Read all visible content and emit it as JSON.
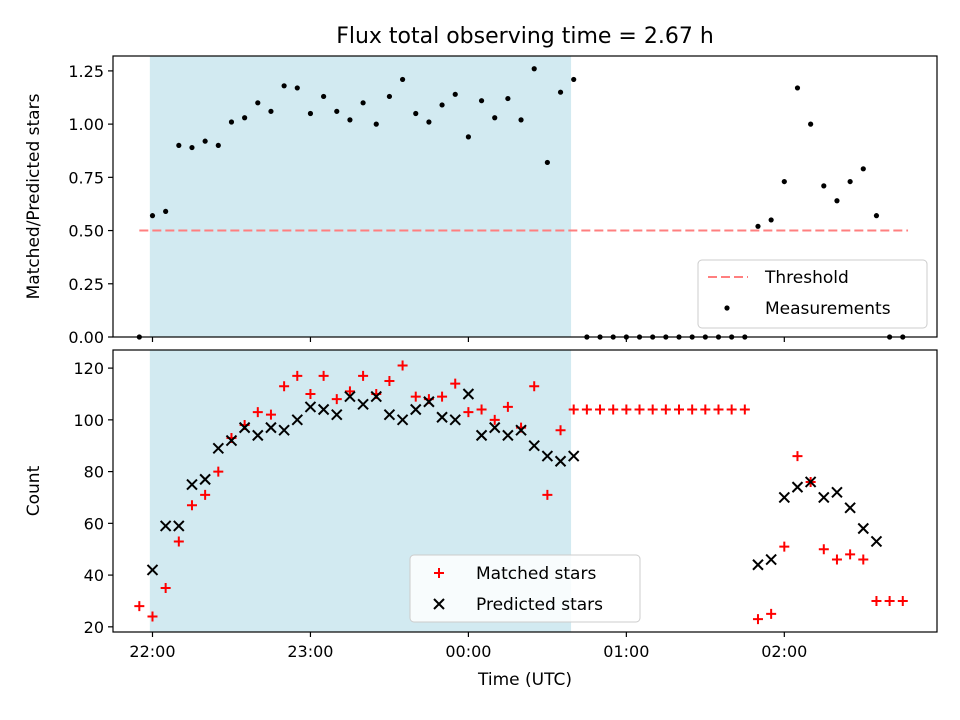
{
  "title": "Flux total observing time = 2.67 h",
  "chart_data": [
    {
      "type": "scatter",
      "panel": "top",
      "ylabel": "Matched/Predicted stars",
      "ylim": [
        0,
        1.32
      ],
      "yticks": [
        0,
        0.25,
        0.5,
        0.75,
        1.0,
        1.25
      ],
      "ytick_labels": [
        "0.00",
        "0.25",
        "0.50",
        "0.75",
        "1.00",
        "1.25"
      ],
      "shaded_interval": [
        "21:59",
        "00:39"
      ],
      "shaded_color": "#add8e6",
      "threshold": {
        "name": "Threshold",
        "value": 0.5,
        "x_start": "21:55",
        "x_end": "02:47",
        "color": "#ff7f7f"
      },
      "legend_position": "lower right",
      "legend": [
        "Threshold",
        "Measurements"
      ],
      "series": [
        {
          "name": "Measurements",
          "color": "#000000",
          "x": [
            "21:55",
            "22:00",
            "22:05",
            "22:10",
            "22:15",
            "22:20",
            "22:25",
            "22:30",
            "22:35",
            "22:40",
            "22:45",
            "22:50",
            "22:55",
            "23:00",
            "23:05",
            "23:10",
            "23:15",
            "23:20",
            "23:25",
            "23:30",
            "23:35",
            "23:40",
            "23:45",
            "23:50",
            "23:55",
            "00:00",
            "00:05",
            "00:10",
            "00:15",
            "00:20",
            "00:25",
            "00:30",
            "00:35",
            "00:40",
            "00:45",
            "00:50",
            "00:55",
            "01:00",
            "01:05",
            "01:10",
            "01:15",
            "01:20",
            "01:25",
            "01:30",
            "01:35",
            "01:40",
            "01:45",
            "01:50",
            "01:55",
            "02:00",
            "02:05",
            "02:10",
            "02:15",
            "02:20",
            "02:25",
            "02:30",
            "02:35",
            "02:40",
            "02:45"
          ],
          "y": [
            0.0,
            0.57,
            0.59,
            0.9,
            0.89,
            0.92,
            0.9,
            1.01,
            1.03,
            1.1,
            1.06,
            1.18,
            1.17,
            1.05,
            1.13,
            1.06,
            1.02,
            1.1,
            1.0,
            1.13,
            1.21,
            1.05,
            1.01,
            1.09,
            1.14,
            0.94,
            1.11,
            1.03,
            1.12,
            1.02,
            1.26,
            0.82,
            1.15,
            1.21,
            0.0,
            0.0,
            0.0,
            0.0,
            0.0,
            0.0,
            0.0,
            0.0,
            0.0,
            0.0,
            0.0,
            0.0,
            0.0,
            0.52,
            0.55,
            0.73,
            1.17,
            1.0,
            0.71,
            0.64,
            0.73,
            0.79,
            0.57,
            0.0,
            0.0
          ]
        }
      ]
    },
    {
      "type": "scatter",
      "panel": "bottom",
      "xlabel": "Time (UTC)",
      "ylabel": "Count",
      "xlim": [
        "21:45",
        "02:58"
      ],
      "ylim": [
        18,
        127
      ],
      "xticks": [
        "22:00",
        "23:00",
        "00:00",
        "01:00",
        "02:00"
      ],
      "yticks": [
        20,
        40,
        60,
        80,
        100,
        120
      ],
      "shaded_interval": [
        "21:59",
        "00:39"
      ],
      "shaded_color": "#add8e6",
      "legend_position": "lower center",
      "legend": [
        "Matched stars",
        "Predicted stars"
      ],
      "series": [
        {
          "name": "Matched stars",
          "marker": "+",
          "color": "#ff0000",
          "x": [
            "21:55",
            "22:00",
            "22:05",
            "22:10",
            "22:15",
            "22:20",
            "22:25",
            "22:30",
            "22:35",
            "22:40",
            "22:45",
            "22:50",
            "22:55",
            "23:00",
            "23:05",
            "23:10",
            "23:15",
            "23:20",
            "23:25",
            "23:30",
            "23:35",
            "23:40",
            "23:45",
            "23:50",
            "23:55",
            "00:00",
            "00:05",
            "00:10",
            "00:15",
            "00:20",
            "00:25",
            "00:30",
            "00:35",
            "00:40",
            "00:45",
            "00:50",
            "00:55",
            "01:00",
            "01:05",
            "01:10",
            "01:15",
            "01:20",
            "01:25",
            "01:30",
            "01:35",
            "01:40",
            "01:45",
            "01:50",
            "01:55",
            "02:00",
            "02:05",
            "02:10",
            "02:15",
            "02:20",
            "02:25",
            "02:30",
            "02:35",
            "02:40",
            "02:45"
          ],
          "y": [
            28,
            24,
            35,
            53,
            67,
            71,
            80,
            93,
            98,
            103,
            102,
            113,
            117,
            110,
            117,
            108,
            111,
            117,
            110,
            115,
            121,
            109,
            108,
            109,
            114,
            103,
            104,
            100,
            105,
            97,
            113,
            71,
            96,
            104,
            104,
            104,
            104,
            104,
            104,
            104,
            104,
            104,
            104,
            104,
            104,
            104,
            104,
            23,
            25,
            51,
            86,
            76,
            50,
            46,
            48,
            46,
            30,
            30,
            30
          ]
        },
        {
          "name": "Predicted stars",
          "marker": "x",
          "color": "#000000",
          "x": [
            "22:00",
            "22:05",
            "22:10",
            "22:15",
            "22:20",
            "22:25",
            "22:30",
            "22:35",
            "22:40",
            "22:45",
            "22:50",
            "22:55",
            "23:00",
            "23:05",
            "23:10",
            "23:15",
            "23:20",
            "23:25",
            "23:30",
            "23:35",
            "23:40",
            "23:45",
            "23:50",
            "23:55",
            "00:00",
            "00:05",
            "00:10",
            "00:15",
            "00:20",
            "00:25",
            "00:30",
            "00:35",
            "00:40",
            "01:50",
            "01:55",
            "02:00",
            "02:05",
            "02:10",
            "02:15",
            "02:20",
            "02:25",
            "02:30",
            "02:35"
          ],
          "y": [
            42,
            59,
            59,
            75,
            77,
            89,
            92,
            97,
            94,
            97,
            96,
            100,
            105,
            104,
            102,
            109,
            106,
            109,
            102,
            100,
            104,
            107,
            101,
            100,
            110,
            94,
            97,
            94,
            96,
            90,
            86,
            84,
            86,
            44,
            46,
            70,
            74,
            76,
            70,
            72,
            66,
            58,
            53
          ]
        }
      ]
    }
  ]
}
